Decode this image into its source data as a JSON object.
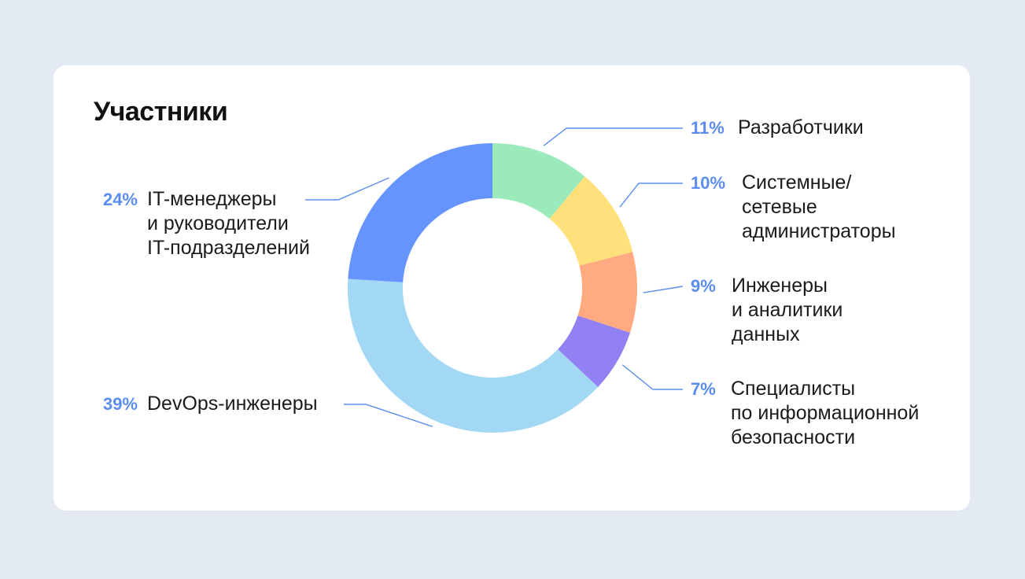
{
  "title": "Участники",
  "chart_data": {
    "type": "pie",
    "title": "Участники",
    "series": [
      {
        "name": "Разработчики",
        "label_lines": [
          "Разработчики"
        ],
        "value": 11,
        "value_label": "11%",
        "color": "#9beabc"
      },
      {
        "name": "Системные/ сетевые администраторы",
        "label_lines": [
          "Системные/",
          "сетевые",
          "администраторы"
        ],
        "value": 10,
        "value_label": "10%",
        "color": "#ffe07a"
      },
      {
        "name": "Инженеры и аналитики данных",
        "label_lines": [
          "Инженеры",
          "и аналитики",
          "данных"
        ],
        "value": 9,
        "value_label": "9%",
        "color": "#ffaa80"
      },
      {
        "name": "Специалисты по информационной безопасности",
        "label_lines": [
          "Специалисты",
          "по информационной",
          "безопасности"
        ],
        "value": 7,
        "value_label": "7%",
        "color": "#9181f2"
      },
      {
        "name": "DevOps-инженеры",
        "label_lines": [
          "DevOps-инженеры"
        ],
        "value": 39,
        "value_label": "39%",
        "color": "#a3d8f4"
      },
      {
        "name": "IT-менеджеры и руководители IT-подразделений",
        "label_lines": [
          "IT-менеджеры",
          "и руководители",
          "IT-подразделений"
        ],
        "value": 24,
        "value_label": "24%",
        "color": "#6694ff"
      }
    ],
    "donut": true,
    "legend": "callout labels with leader lines"
  },
  "colors": {
    "background": "#e3eaf4",
    "card": "#ffffff",
    "accent_percent": "#5b8def",
    "leader_line": "#5b8def"
  }
}
